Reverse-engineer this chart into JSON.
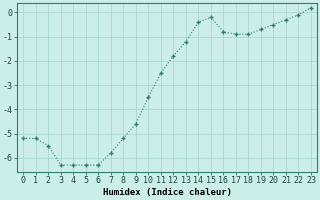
{
  "x": [
    0,
    1,
    2,
    3,
    4,
    5,
    6,
    7,
    8,
    9,
    10,
    11,
    12,
    13,
    14,
    15,
    16,
    17,
    18,
    19,
    20,
    21,
    22,
    23
  ],
  "y": [
    -5.2,
    -5.2,
    -5.5,
    -6.3,
    -6.3,
    -6.3,
    -6.3,
    -5.8,
    -5.2,
    -4.6,
    -3.5,
    -2.5,
    -1.8,
    -1.2,
    -0.4,
    -0.2,
    -0.8,
    -0.9,
    -0.9,
    -0.7,
    -0.5,
    -0.3,
    -0.1,
    0.2
  ],
  "line_color": "#2e7d6e",
  "marker": "+",
  "bg_color": "#cceee8",
  "grid_color": "#aad8d0",
  "xlabel": "Humidex (Indice chaleur)",
  "ylim": [
    -6.6,
    0.4
  ],
  "xlim": [
    -0.5,
    23.5
  ],
  "yticks": [
    0,
    -1,
    -2,
    -3,
    -4,
    -5,
    -6
  ],
  "xticks": [
    0,
    1,
    2,
    3,
    4,
    5,
    6,
    7,
    8,
    9,
    10,
    11,
    12,
    13,
    14,
    15,
    16,
    17,
    18,
    19,
    20,
    21,
    22,
    23
  ],
  "label_fontsize": 6.5,
  "tick_fontsize": 6.0
}
